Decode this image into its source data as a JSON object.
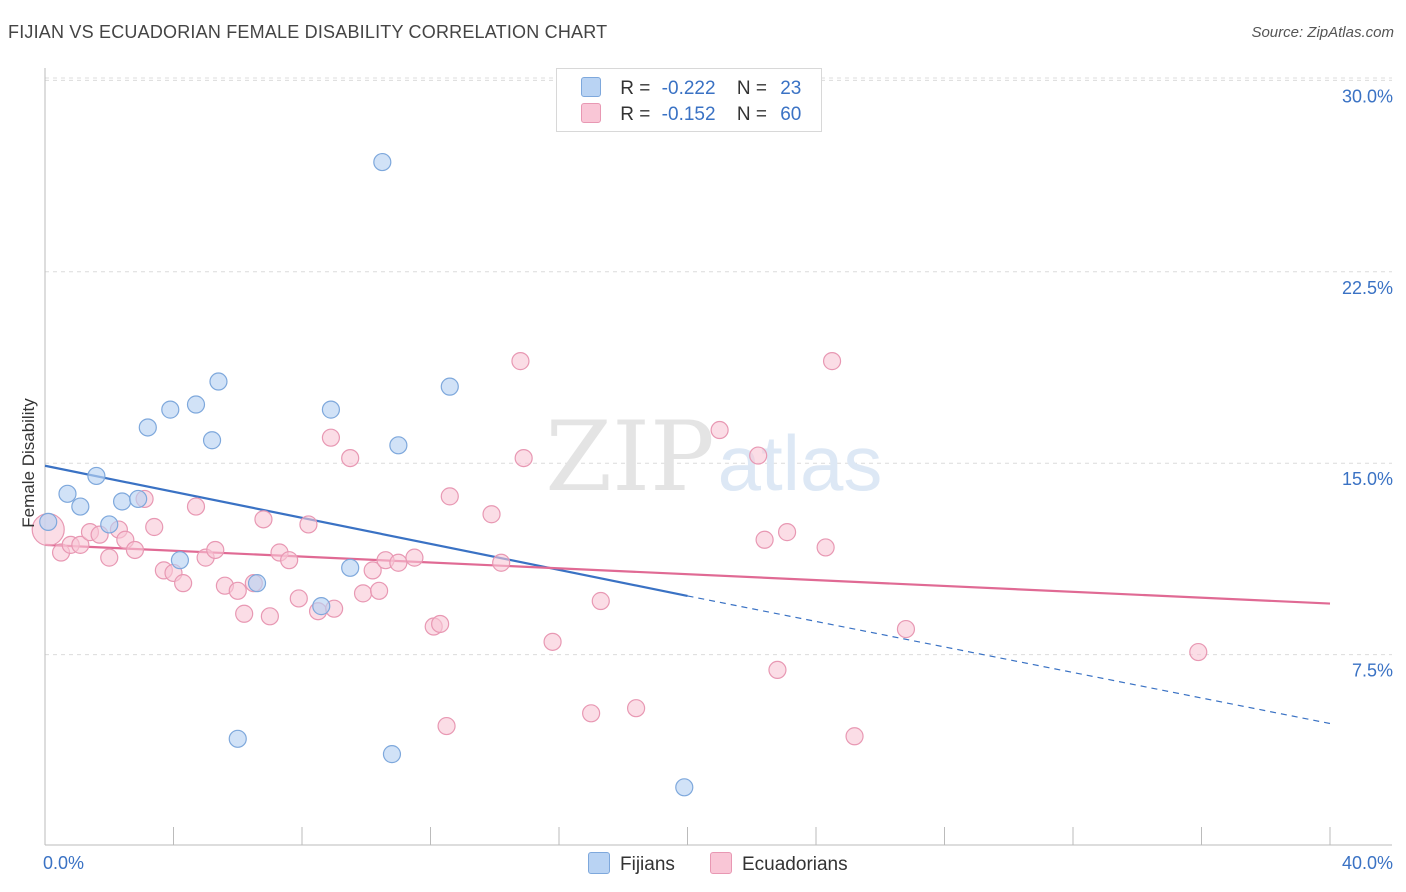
{
  "title": "FIJIAN VS ECUADORIAN FEMALE DISABILITY CORRELATION CHART",
  "source": "Source: ZipAtlas.com",
  "watermark": {
    "zip": "ZIP",
    "atlas": "atlas"
  },
  "legend": {
    "rows": [
      {
        "r_label": "R =",
        "r_value": "-0.222",
        "n_label": "N =",
        "n_value": "23"
      },
      {
        "r_label": "R =",
        "r_value": "-0.152",
        "n_label": "N =",
        "n_value": "60"
      }
    ]
  },
  "colors": {
    "fijians_fill": "#b9d3f3",
    "fijians_stroke": "#7ea8dc",
    "fijians_line": "#3a72c4",
    "ecuadorians_fill": "#f9c6d6",
    "ecuadorians_stroke": "#e898b3",
    "ecuadorians_line": "#e06a94",
    "tick_label": "#3a72c4"
  },
  "chart_data": {
    "type": "scatter",
    "title": "FIJIAN VS ECUADORIAN FEMALE DISABILITY CORRELATION CHART",
    "xlabel": "",
    "ylabel": "Female Disability",
    "xlim": [
      0,
      40
    ],
    "ylim": [
      0,
      31
    ],
    "x_tick_labels": [
      "0.0%",
      "40.0%"
    ],
    "y_ticks": [
      {
        "value": 7.5,
        "label": "7.5%"
      },
      {
        "value": 15.0,
        "label": "15.0%"
      },
      {
        "value": 22.5,
        "label": "22.5%"
      },
      {
        "value": 30.0,
        "label": "30.0%"
      }
    ],
    "grid": true,
    "legend_position": "top-center",
    "series": [
      {
        "name": "Fijians",
        "points": [
          [
            0.1,
            12.7
          ],
          [
            0.7,
            13.8
          ],
          [
            1.1,
            13.3
          ],
          [
            1.6,
            14.5
          ],
          [
            2.0,
            12.6
          ],
          [
            2.4,
            13.5
          ],
          [
            2.9,
            13.6
          ],
          [
            3.2,
            16.4
          ],
          [
            3.9,
            17.1
          ],
          [
            4.2,
            11.2
          ],
          [
            4.7,
            17.3
          ],
          [
            5.2,
            15.9
          ],
          [
            5.4,
            18.2
          ],
          [
            6.0,
            4.2
          ],
          [
            6.6,
            10.3
          ],
          [
            8.6,
            9.4
          ],
          [
            8.9,
            17.1
          ],
          [
            9.5,
            10.9
          ],
          [
            10.5,
            26.8
          ],
          [
            10.8,
            3.6
          ],
          [
            11.0,
            15.7
          ],
          [
            12.6,
            18.0
          ],
          [
            19.9,
            2.3
          ]
        ],
        "trend": {
          "x": [
            0,
            20
          ],
          "y": [
            14.9,
            9.8
          ],
          "dashed_to": [
            40,
            4.8
          ]
        }
      },
      {
        "name": "Ecuadorians",
        "points": [
          [
            0.1,
            12.4
          ],
          [
            0.5,
            11.5
          ],
          [
            0.8,
            11.8
          ],
          [
            1.1,
            11.8
          ],
          [
            1.4,
            12.3
          ],
          [
            1.7,
            12.2
          ],
          [
            2.0,
            11.3
          ],
          [
            2.3,
            12.4
          ],
          [
            2.5,
            12.0
          ],
          [
            2.8,
            11.6
          ],
          [
            3.1,
            13.6
          ],
          [
            3.4,
            12.5
          ],
          [
            3.7,
            10.8
          ],
          [
            4.0,
            10.7
          ],
          [
            4.3,
            10.3
          ],
          [
            4.7,
            13.3
          ],
          [
            5.0,
            11.3
          ],
          [
            5.3,
            11.6
          ],
          [
            5.6,
            10.2
          ],
          [
            6.0,
            10.0
          ],
          [
            6.2,
            9.1
          ],
          [
            6.5,
            10.3
          ],
          [
            6.8,
            12.8
          ],
          [
            7.0,
            9.0
          ],
          [
            7.3,
            11.5
          ],
          [
            7.6,
            11.2
          ],
          [
            7.9,
            9.7
          ],
          [
            8.2,
            12.6
          ],
          [
            8.5,
            9.2
          ],
          [
            8.9,
            16.0
          ],
          [
            9.0,
            9.3
          ],
          [
            9.5,
            15.2
          ],
          [
            9.9,
            9.9
          ],
          [
            10.2,
            10.8
          ],
          [
            10.4,
            10.0
          ],
          [
            10.6,
            11.2
          ],
          [
            11.0,
            11.1
          ],
          [
            11.5,
            11.3
          ],
          [
            12.1,
            8.6
          ],
          [
            12.3,
            8.7
          ],
          [
            12.5,
            4.7
          ],
          [
            12.6,
            13.7
          ],
          [
            13.9,
            13.0
          ],
          [
            14.2,
            11.1
          ],
          [
            14.8,
            19.0
          ],
          [
            14.9,
            15.2
          ],
          [
            15.8,
            8.0
          ],
          [
            17.0,
            5.2
          ],
          [
            17.3,
            9.6
          ],
          [
            18.4,
            5.4
          ],
          [
            21.0,
            16.3
          ],
          [
            22.2,
            15.3
          ],
          [
            22.4,
            12.0
          ],
          [
            22.8,
            6.9
          ],
          [
            23.1,
            12.3
          ],
          [
            24.3,
            11.7
          ],
          [
            24.5,
            19.0
          ],
          [
            25.2,
            4.3
          ],
          [
            26.8,
            8.5
          ],
          [
            35.9,
            7.6
          ]
        ],
        "trend": {
          "x": [
            0,
            40
          ],
          "y": [
            11.8,
            9.5
          ]
        }
      }
    ]
  }
}
